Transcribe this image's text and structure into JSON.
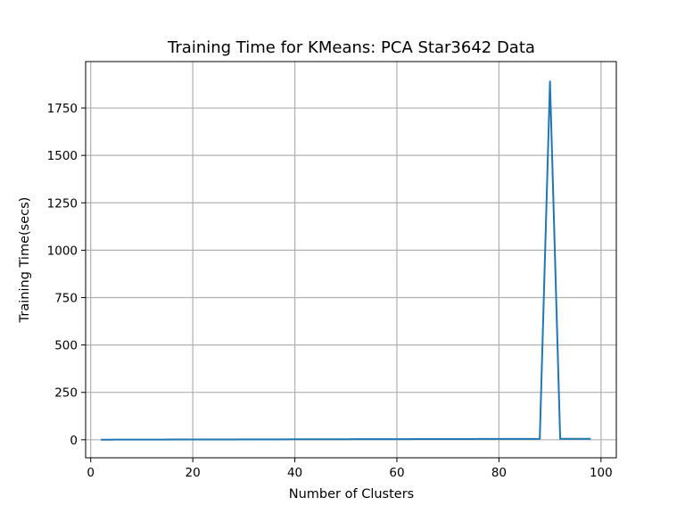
{
  "chart_data": {
    "type": "line",
    "title": "Training Time for KMeans: PCA Star3642 Data",
    "xlabel": "Number of Clusters",
    "ylabel": "Training Time(secs)",
    "xlim": [
      -1,
      103
    ],
    "ylim": [
      -95,
      1995
    ],
    "xticks": [
      0,
      20,
      40,
      60,
      80,
      100
    ],
    "yticks": [
      0,
      250,
      500,
      750,
      1000,
      1250,
      1500,
      1750
    ],
    "grid": true,
    "line_color": "#1f77b4",
    "series": [
      {
        "x": [
          2,
          4,
          6,
          8,
          10,
          12,
          14,
          16,
          18,
          20,
          22,
          24,
          26,
          28,
          30,
          32,
          34,
          36,
          38,
          40,
          42,
          44,
          46,
          48,
          50,
          52,
          54,
          56,
          58,
          60,
          62,
          64,
          66,
          68,
          70,
          72,
          74,
          76,
          78,
          80,
          82,
          84,
          86,
          88,
          90,
          92,
          94,
          96,
          98
        ],
        "values": [
          0.5,
          0.6,
          0.7,
          0.8,
          0.9,
          1.0,
          1.1,
          1.2,
          1.3,
          1.4,
          1.5,
          1.6,
          1.7,
          1.8,
          1.9,
          2.0,
          2.1,
          2.2,
          2.3,
          2.4,
          2.5,
          2.6,
          2.7,
          2.8,
          2.9,
          3.0,
          3.1,
          3.2,
          3.3,
          3.4,
          3.5,
          3.6,
          3.7,
          3.8,
          3.9,
          4.0,
          4.1,
          4.2,
          4.3,
          4.4,
          4.5,
          4.6,
          4.7,
          4.8,
          1890,
          4.9,
          5.0,
          5.1,
          5.2
        ]
      }
    ]
  }
}
